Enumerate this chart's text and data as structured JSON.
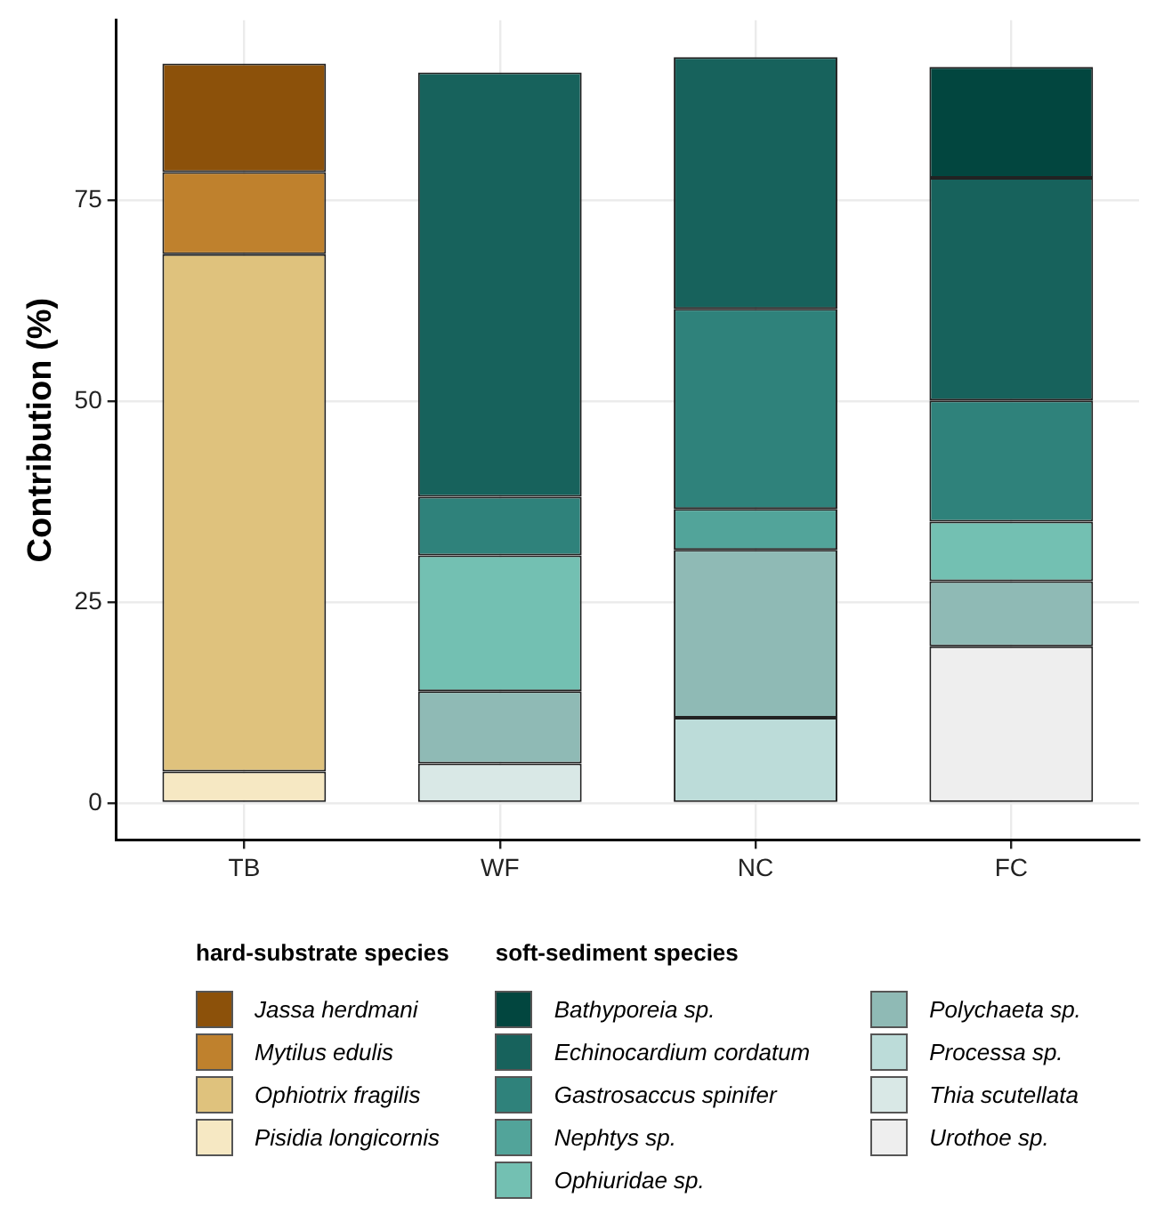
{
  "chart_data": {
    "type": "bar",
    "stacked": true,
    "ylabel": "Contribution (%)",
    "categories": [
      "TB",
      "WF",
      "NC",
      "FC"
    ],
    "ylim": [
      -4.6,
      97.4
    ],
    "yticks": [
      0,
      25,
      50,
      75
    ],
    "grid": true,
    "legend": "bottom",
    "legend_title": [
      "hard-substrate species",
      "soft-sediment species"
    ],
    "series": [
      {
        "name": "Pisidia longicornis",
        "color": "#f6e8c3",
        "values": [
          3.9,
          null,
          null,
          null
        ]
      },
      {
        "name": "Ophiotrix fragilis",
        "color": "#dfc27d",
        "values": [
          64.4,
          null,
          null,
          null
        ]
      },
      {
        "name": "Mytilus edulis",
        "color": "#bf812d",
        "values": [
          10.2,
          null,
          null,
          null
        ]
      },
      {
        "name": "Jassa herdmani",
        "color": "#8c510a",
        "values": [
          13.5,
          null,
          null,
          null
        ]
      },
      {
        "name": "Urothoe sp.",
        "color": "#eeeeee",
        "values": [
          null,
          0,
          0,
          19.5
        ]
      },
      {
        "name": "Thia scutellata",
        "color": "#d9e8e6",
        "values": [
          null,
          4.9,
          0,
          0
        ]
      },
      {
        "name": "Processa sp.",
        "color": "#bcdcd9",
        "values": [
          null,
          0,
          10.6,
          0
        ]
      },
      {
        "name": "Polychaeta sp.",
        "color": "#8fbab5",
        "values": [
          null,
          9.0,
          20.9,
          8.1
        ]
      },
      {
        "name": "Ophiuridae sp.",
        "color": "#73c0b2",
        "values": [
          null,
          16.9,
          0,
          7.4
        ]
      },
      {
        "name": "Nephtys sp.",
        "color": "#52a49a",
        "values": [
          null,
          0,
          5.1,
          0
        ]
      },
      {
        "name": "Gastrosaccus spinifer",
        "color": "#2f827b",
        "values": [
          null,
          7.3,
          24.9,
          15.1
        ]
      },
      {
        "name": "Echinocardium cordatum",
        "color": "#17625c",
        "values": [
          null,
          52.8,
          31.3,
          27.7
        ]
      },
      {
        "name": "Bathyporeia sp.",
        "color": "#02463f",
        "values": [
          null,
          0,
          0,
          13.8
        ]
      }
    ]
  }
}
